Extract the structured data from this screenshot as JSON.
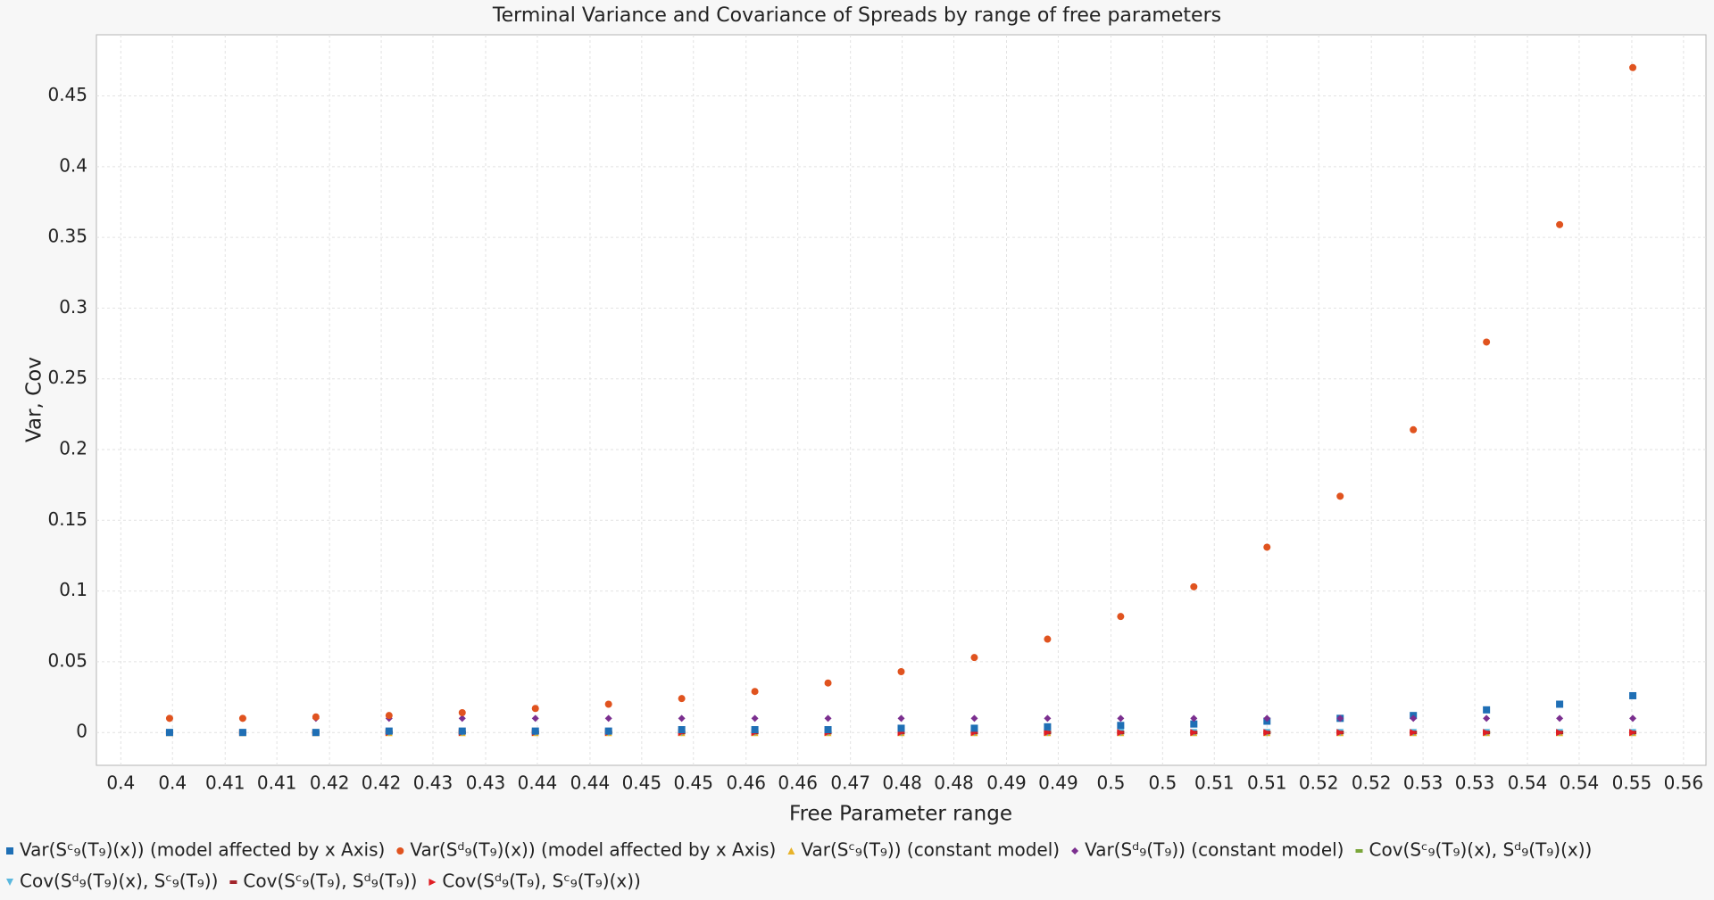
{
  "chart_data": {
    "type": "scatter",
    "title": "Terminal Variance and Covariance of Spreads by range of free parameters",
    "x_label": "Free Parameter range",
    "y_label": "Var, Cov",
    "x": [
      0.4,
      0.4075,
      0.415,
      0.4225,
      0.43,
      0.4375,
      0.445,
      0.4525,
      0.46,
      0.4675,
      0.475,
      0.4825,
      0.49,
      0.4975,
      0.505,
      0.5125,
      0.52,
      0.5275,
      0.535,
      0.5425,
      0.55
    ],
    "xlim": [
      0.3925,
      0.5575
    ],
    "xticks": [
      {
        "value": 0.395,
        "label": "0.4"
      },
      {
        "value": 0.4003,
        "label": "0.4"
      },
      {
        "value": 0.4057,
        "label": "0.41"
      },
      {
        "value": 0.411,
        "label": "0.41"
      },
      {
        "value": 0.4164,
        "label": "0.42"
      },
      {
        "value": 0.4217,
        "label": "0.42"
      },
      {
        "value": 0.427,
        "label": "0.43"
      },
      {
        "value": 0.4324,
        "label": "0.43"
      },
      {
        "value": 0.4377,
        "label": "0.44"
      },
      {
        "value": 0.4431,
        "label": "0.44"
      },
      {
        "value": 0.4484,
        "label": "0.45"
      },
      {
        "value": 0.4537,
        "label": "0.45"
      },
      {
        "value": 0.4591,
        "label": "0.46"
      },
      {
        "value": 0.4644,
        "label": "0.46"
      },
      {
        "value": 0.4698,
        "label": "0.47"
      },
      {
        "value": 0.4751,
        "label": "0.48"
      },
      {
        "value": 0.4804,
        "label": "0.48"
      },
      {
        "value": 0.4858,
        "label": "0.49"
      },
      {
        "value": 0.4911,
        "label": "0.49"
      },
      {
        "value": 0.4965,
        "label": "0.5"
      },
      {
        "value": 0.5018,
        "label": "0.5"
      },
      {
        "value": 0.5071,
        "label": "0.51"
      },
      {
        "value": 0.5125,
        "label": "0.51"
      },
      {
        "value": 0.5178,
        "label": "0.52"
      },
      {
        "value": 0.5232,
        "label": "0.52"
      },
      {
        "value": 0.5285,
        "label": "0.53"
      },
      {
        "value": 0.5338,
        "label": "0.53"
      },
      {
        "value": 0.5392,
        "label": "0.54"
      },
      {
        "value": 0.5445,
        "label": "0.54"
      },
      {
        "value": 0.5499,
        "label": "0.55"
      },
      {
        "value": 0.5552,
        "label": "0.56"
      }
    ],
    "ylim": [
      -0.0232,
      0.4932
    ],
    "yticks": [
      0,
      0.05,
      0.1,
      0.15,
      0.2,
      0.25,
      0.3,
      0.35,
      0.4,
      0.45
    ],
    "grid": true,
    "series": [
      {
        "name": "Var(Sᶜ₉(T₉)(x)) (model affected by x Axis)",
        "color": "#1f6fb5",
        "marker": "square",
        "values": [
          0,
          0,
          0,
          0.001,
          0.001,
          0.001,
          0.001,
          0.002,
          0.002,
          0.002,
          0.003,
          0.003,
          0.004,
          0.005,
          0.006,
          0.008,
          0.01,
          0.012,
          0.016,
          0.02,
          0.026
        ]
      },
      {
        "name": "Var(Sᵈ₉(T₉)(x)) (model affected by x Axis)",
        "color": "#e0531f",
        "marker": "circle",
        "values": [
          0.01,
          0.01,
          0.011,
          0.012,
          0.014,
          0.017,
          0.02,
          0.024,
          0.029,
          0.035,
          0.043,
          0.053,
          0.066,
          0.082,
          0.103,
          0.131,
          0.167,
          0.214,
          0.276,
          0.359,
          0.47
        ]
      },
      {
        "name": "Var(Sᶜ₉(T₉)) (constant model)",
        "color": "#e8b32a",
        "marker": "triangle-up",
        "values": [
          0,
          0,
          0,
          0,
          0,
          0,
          0,
          0,
          0,
          0,
          0,
          0,
          0,
          0,
          0,
          0,
          0,
          0,
          0,
          0,
          0
        ]
      },
      {
        "name": "Var(Sᵈ₉(T₉)) (constant model)",
        "color": "#7b2f8f",
        "marker": "diamond",
        "values": [
          0.01,
          0.01,
          0.01,
          0.01,
          0.01,
          0.01,
          0.01,
          0.01,
          0.01,
          0.01,
          0.01,
          0.01,
          0.01,
          0.01,
          0.01,
          0.01,
          0.01,
          0.01,
          0.01,
          0.01,
          0.01
        ]
      },
      {
        "name": "Cov(Sᶜ₉(T₉)(x), Sᵈ₉(T₉)(x))",
        "color": "#7aa63a",
        "marker": "dash",
        "values": [
          0,
          0,
          0,
          0,
          0,
          0,
          0,
          0,
          0,
          0,
          0,
          0,
          0,
          0,
          0,
          0,
          0,
          0,
          0,
          0,
          0
        ]
      },
      {
        "name": "Cov(Sᵈ₉(T₉)(x), Sᶜ₉(T₉))",
        "color": "#5bb8de",
        "marker": "triangle-down",
        "values": [
          0,
          0,
          0,
          0,
          0,
          0,
          0,
          0,
          0,
          0,
          0,
          0,
          0,
          0,
          0,
          0,
          0,
          0,
          0,
          0,
          0
        ]
      },
      {
        "name": "Cov(Sᶜ₉(T₉), Sᵈ₉(T₉))",
        "color": "#a2252b",
        "marker": "dash",
        "values": [
          0,
          0,
          0,
          0,
          0,
          0,
          0,
          0,
          0,
          0,
          0,
          0,
          0,
          0,
          0,
          0,
          0,
          0,
          0,
          0,
          0
        ]
      },
      {
        "name": "Cov(Sᵈ₉(T₉), Sᶜ₉(T₉)(x))",
        "color": "#e01e24",
        "marker": "triangle-right",
        "values": [
          0,
          0,
          0,
          0,
          0,
          0,
          0,
          0,
          0,
          0,
          0,
          0,
          0,
          0,
          0,
          0,
          0,
          0,
          0,
          0,
          0
        ]
      }
    ]
  }
}
